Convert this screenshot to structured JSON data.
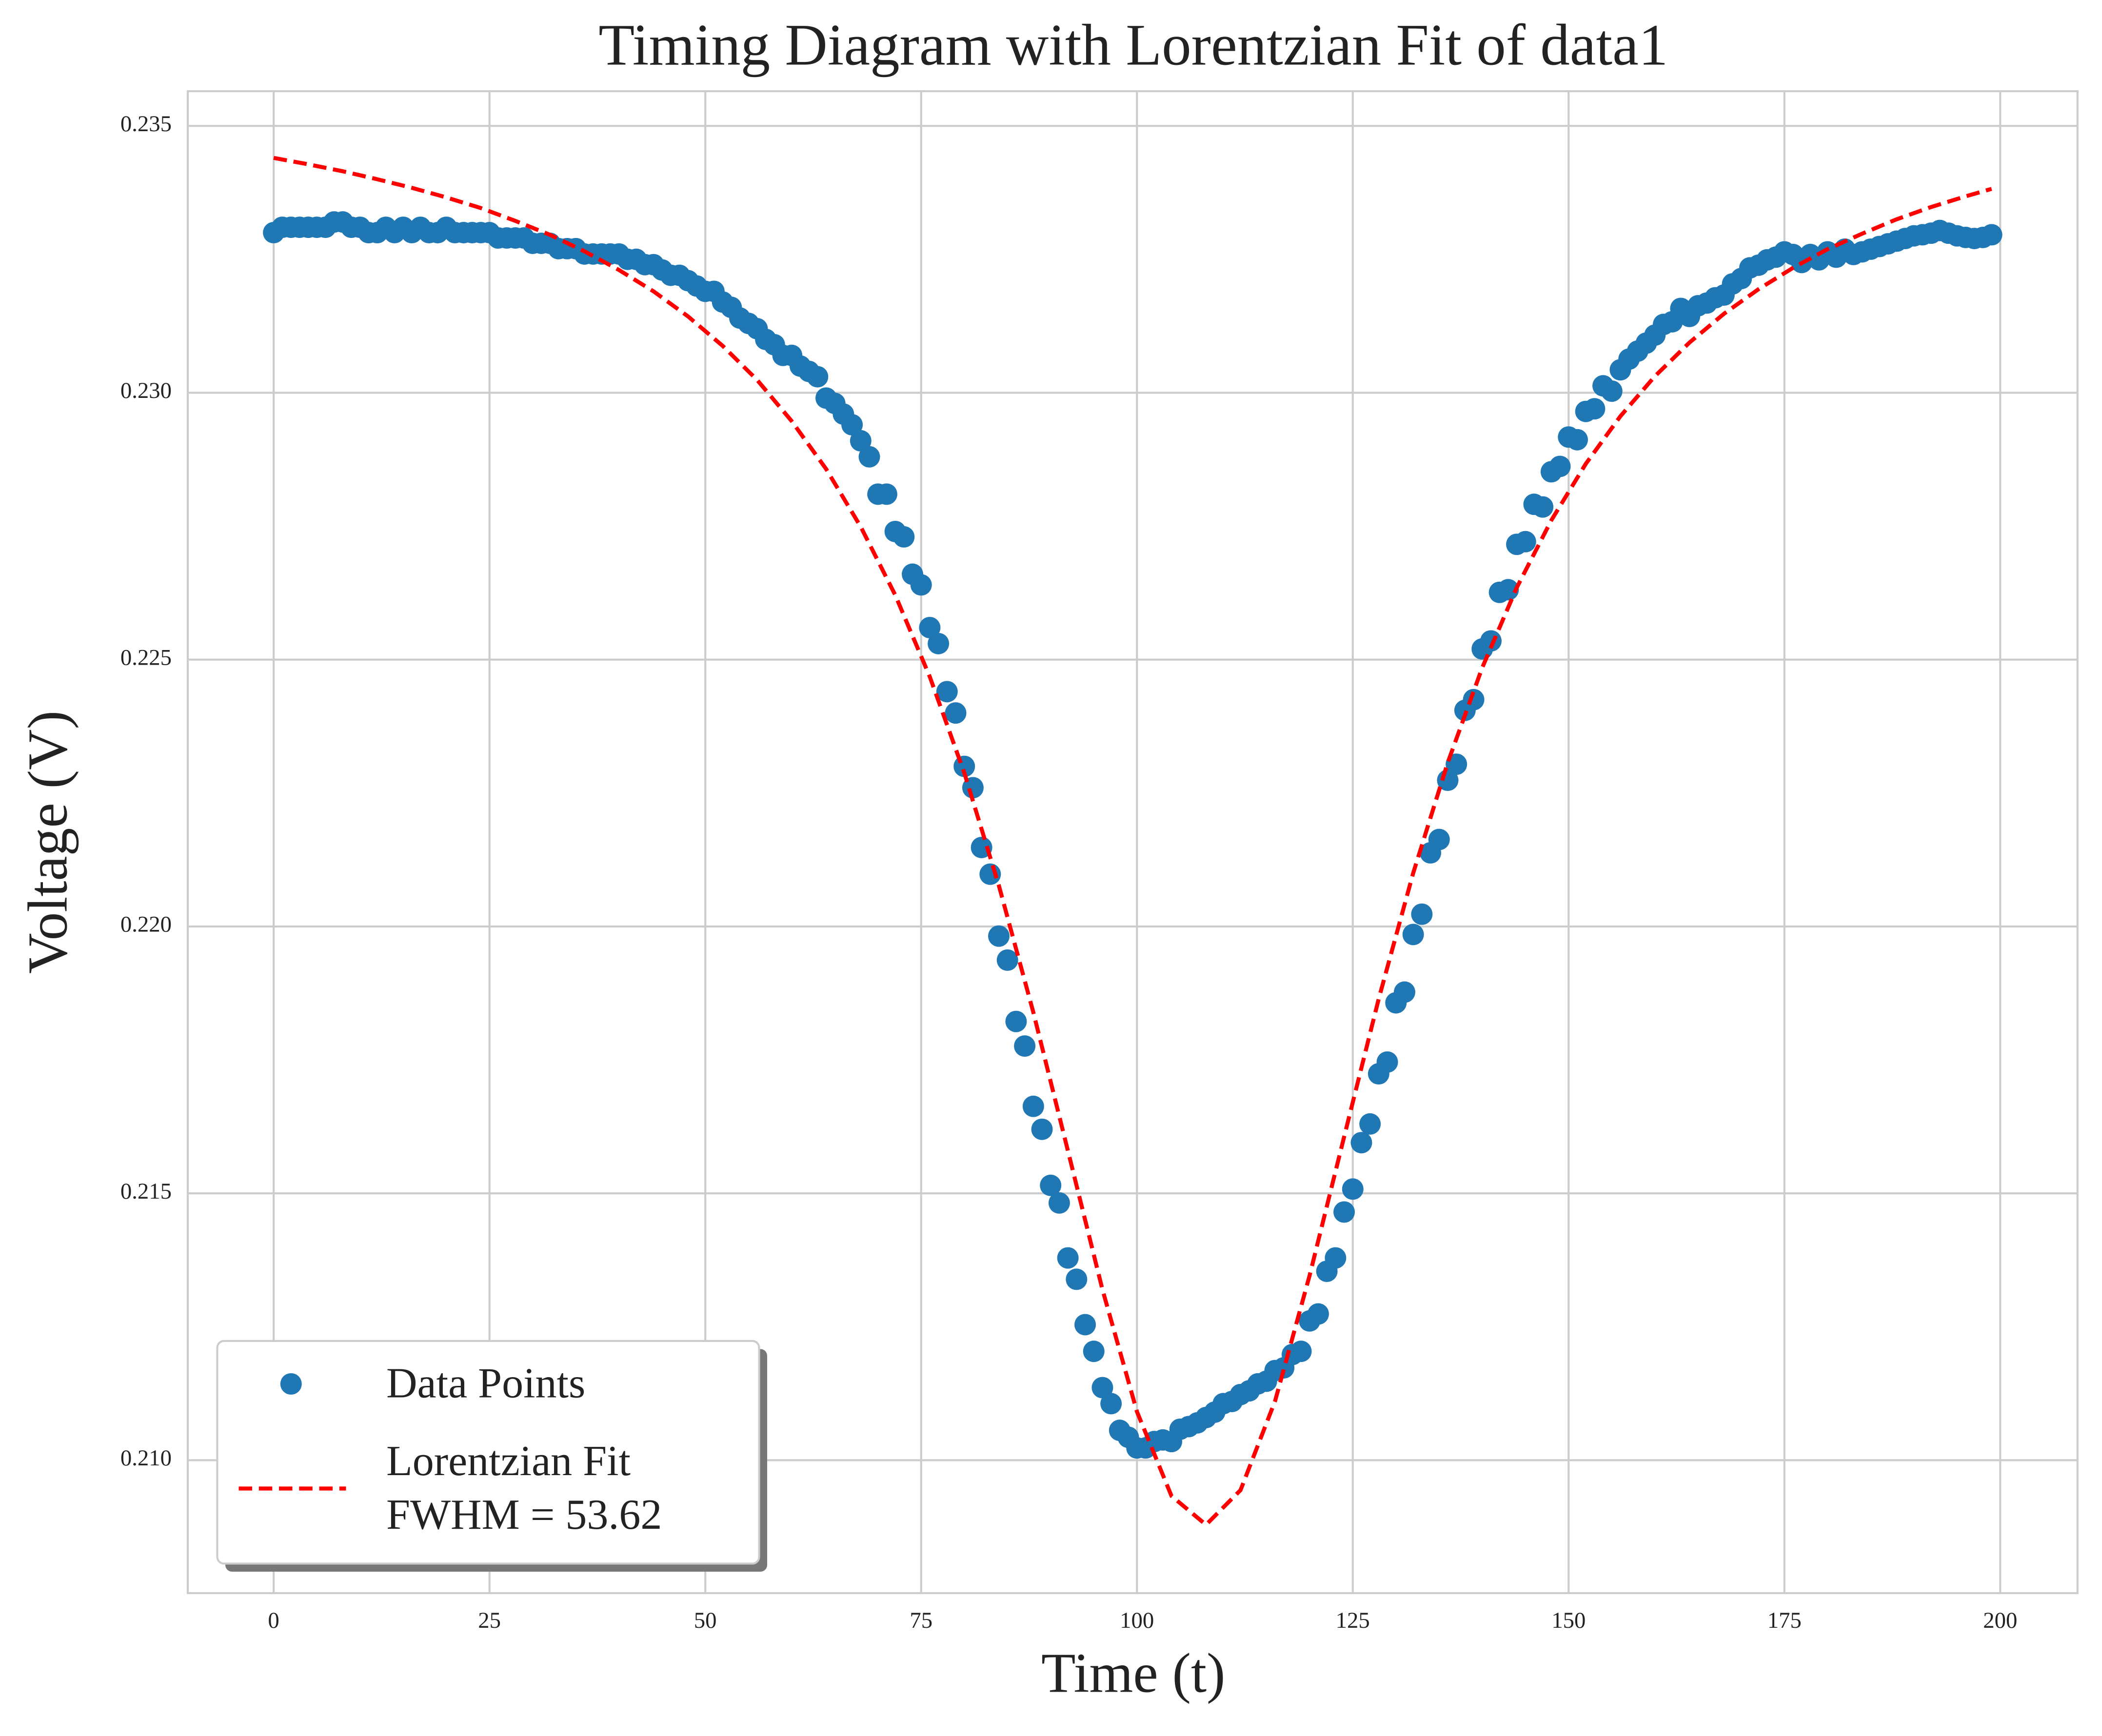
{
  "chart_data": {
    "type": "scatter",
    "title": "Timing Diagram with Lorentzian Fit of data1",
    "x_label": "Time (t)",
    "y_label": "Voltage (V)",
    "xlim": [
      -9.95,
      208.95
    ],
    "ylim": [
      0.20751,
      0.23565
    ],
    "xticks": [
      0,
      25,
      50,
      75,
      100,
      125,
      150,
      175,
      200
    ],
    "yticks": [
      {
        "value": 0.21,
        "label": "0.210"
      },
      0.215,
      {
        "value": 0.22,
        "label": "0.220"
      },
      0.225,
      {
        "value": 0.23,
        "label": "0.230"
      },
      0.235
    ],
    "grid": true,
    "legend": "lower left",
    "series": [
      {
        "name": "Data Points",
        "type": "scatter",
        "color": "#1f77b4",
        "x": [
          0,
          1,
          2,
          3,
          4,
          5,
          6,
          7,
          8,
          9,
          10,
          11,
          12,
          13,
          14,
          15,
          16,
          17,
          18,
          19,
          20,
          21,
          22,
          23,
          24,
          25,
          26,
          27,
          28,
          29,
          30,
          31,
          32,
          33,
          34,
          35,
          36,
          37,
          38,
          39,
          40,
          41,
          42,
          43,
          44,
          45,
          46,
          47,
          48,
          49,
          50,
          51,
          52,
          53,
          54,
          55,
          56,
          57,
          58,
          59,
          60,
          61,
          62,
          63,
          64,
          65,
          66,
          67,
          68,
          69,
          70,
          71,
          72,
          73,
          74,
          75,
          76,
          77,
          78,
          79,
          80,
          81,
          82,
          83,
          84,
          85,
          86,
          87,
          88,
          89,
          90,
          91,
          92,
          93,
          94,
          95,
          96,
          97,
          98,
          99,
          100,
          101,
          102,
          103,
          104,
          105,
          106,
          107,
          108,
          109,
          110,
          111,
          112,
          113,
          114,
          115,
          116,
          117,
          118,
          119,
          120,
          121,
          122,
          123,
          124,
          125,
          126,
          127,
          128,
          129,
          130,
          131,
          132,
          133,
          134,
          135,
          136,
          137,
          138,
          139,
          140,
          141,
          142,
          143,
          144,
          145,
          146,
          147,
          148,
          149,
          150,
          151,
          152,
          153,
          154,
          155,
          156,
          157,
          158,
          159,
          160,
          161,
          162,
          163,
          164,
          165,
          166,
          167,
          168,
          169,
          170,
          171,
          172,
          173,
          174,
          175,
          176,
          177,
          178,
          179,
          180,
          181,
          182,
          183,
          184,
          185,
          186,
          187,
          188,
          189,
          190,
          191,
          192,
          193,
          194,
          195,
          196,
          197,
          198,
          199
        ],
        "values": [
          0.233,
          0.2331,
          0.2331,
          0.2331,
          0.2331,
          0.2331,
          0.2331,
          0.2332,
          0.2332,
          0.2331,
          0.2331,
          0.233,
          0.233,
          0.2331,
          0.233,
          0.2331,
          0.233,
          0.2331,
          0.233,
          0.233,
          0.2331,
          0.233,
          0.233,
          0.233,
          0.233,
          0.233,
          0.2329,
          0.2329,
          0.2329,
          0.2329,
          0.2328,
          0.2328,
          0.2328,
          0.2327,
          0.2327,
          0.2327,
          0.2326,
          0.2326,
          0.2326,
          0.2326,
          0.2326,
          0.2325,
          0.2325,
          0.2324,
          0.2324,
          0.2323,
          0.2322,
          0.2322,
          0.2321,
          0.232,
          0.2319,
          0.2319,
          0.2317,
          0.2316,
          0.2314,
          0.2313,
          0.2312,
          0.231,
          0.2309,
          0.2307,
          0.2307,
          0.2305,
          0.2304,
          0.2303,
          0.2299,
          0.2298,
          0.2296,
          0.2294,
          0.2291,
          0.2288,
          0.2281,
          0.2281,
          0.2274,
          0.2273,
          0.2266,
          0.2264,
          0.2256,
          0.2253,
          0.2244,
          0.224,
          0.223,
          0.2226,
          0.22148,
          0.22098,
          0.21982,
          0.21937,
          0.21822,
          0.21776,
          0.21663,
          0.2162,
          0.21515,
          0.21482,
          0.21379,
          0.21339,
          0.21254,
          0.21204,
          0.21136,
          0.21106,
          0.21056,
          0.21043,
          0.21023,
          0.21023,
          0.21035,
          0.21038,
          0.21035,
          0.21058,
          0.21063,
          0.2107,
          0.2108,
          0.2109,
          0.21106,
          0.2111,
          0.21123,
          0.2113,
          0.21143,
          0.21148,
          0.21168,
          0.21173,
          0.21198,
          0.21204,
          0.21261,
          0.21274,
          0.21354,
          0.21379,
          0.21465,
          0.21508,
          0.21595,
          0.2163,
          0.21724,
          0.21746,
          0.21857,
          0.21877,
          0.21985,
          0.22023,
          0.22138,
          0.22163,
          0.22274,
          0.22304,
          0.22405,
          0.22425,
          0.2252,
          0.22535,
          0.22626,
          0.22631,
          0.22716,
          0.22721,
          0.22791,
          0.22786,
          0.22852,
          0.22862,
          0.22917,
          0.22912,
          0.22965,
          0.2297,
          0.23013,
          0.23003,
          0.23043,
          0.23063,
          0.23078,
          0.23093,
          0.23108,
          0.23128,
          0.23133,
          0.23158,
          0.23143,
          0.23163,
          0.23168,
          0.23178,
          0.23183,
          0.23204,
          0.23214,
          0.23234,
          0.23239,
          0.23249,
          0.23254,
          0.23264,
          0.23259,
          0.23244,
          0.23259,
          0.23249,
          0.23264,
          0.23254,
          0.23269,
          0.23259,
          0.23264,
          0.23269,
          0.23274,
          0.23279,
          0.23284,
          0.23289,
          0.23294,
          0.23296,
          0.23299,
          0.23304,
          0.23299,
          0.23294,
          0.23291,
          0.23289,
          0.23291,
          0.23296
        ]
      },
      {
        "name": "Lorentzian Fit\nFWHM = 53.62",
        "type": "line",
        "color": "#ff0000",
        "dashed": true,
        "x": [
          0,
          4,
          8,
          12,
          16,
          20,
          24,
          28,
          32,
          36,
          40,
          44,
          48,
          52,
          56,
          60,
          64,
          68,
          72,
          76,
          80,
          84,
          88,
          92,
          96,
          100,
          104,
          108,
          112,
          116,
          120,
          124,
          128,
          132,
          136,
          140,
          144,
          148,
          152,
          156,
          160,
          164,
          168,
          172,
          176,
          180,
          184,
          188,
          192,
          196,
          199
        ],
        "values": [
          0.2344,
          0.23428,
          0.23415,
          0.234,
          0.23384,
          0.23366,
          0.23346,
          0.23322,
          0.23296,
          0.23265,
          0.2323,
          0.2319,
          0.23143,
          0.23088,
          0.23024,
          0.22947,
          0.22857,
          0.22749,
          0.22621,
          0.22468,
          0.22288,
          0.22077,
          0.21839,
          0.2158,
          0.2132,
          0.21091,
          0.20933,
          0.20879,
          0.20944,
          0.21111,
          0.21346,
          0.21606,
          0.21864,
          0.221,
          0.22307,
          0.22485,
          0.22635,
          0.22761,
          0.22867,
          0.22956,
          0.23031,
          0.23094,
          0.23148,
          0.23194,
          0.23234,
          0.23269,
          0.23298,
          0.23325,
          0.23348,
          0.23368,
          0.23382
        ]
      }
    ]
  }
}
